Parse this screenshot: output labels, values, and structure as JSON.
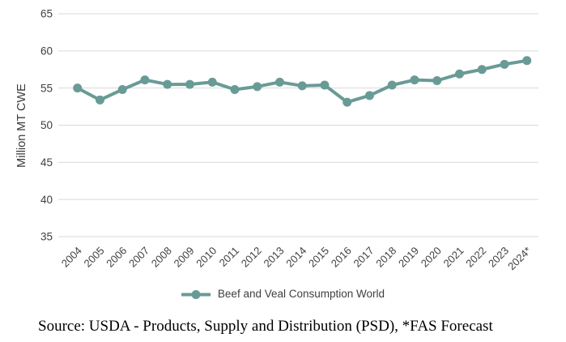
{
  "figure": {
    "source_text": "Source: USDA - Products, Supply and Distribution (PSD), *FAS Forecast"
  },
  "chart_data": {
    "type": "line",
    "title": "",
    "xlabel": "",
    "ylabel": "Million MT CWE",
    "ylim": [
      35,
      65
    ],
    "ytick_step": 5,
    "grid": true,
    "legend_position": "bottom-center",
    "categories": [
      "2004",
      "2005",
      "2006",
      "2007",
      "2008",
      "2009",
      "2010",
      "2011",
      "2012",
      "2013",
      "2014",
      "2015",
      "2016",
      "2017",
      "2018",
      "2019",
      "2020",
      "2021",
      "2022",
      "2023",
      "2024*"
    ],
    "series": [
      {
        "name": "Beef and Veal Consumption World",
        "color": "#699b96",
        "marker": "circle",
        "values": [
          55.0,
          53.4,
          54.8,
          56.1,
          55.5,
          55.5,
          55.8,
          54.8,
          55.2,
          55.8,
          55.3,
          55.4,
          53.1,
          54.0,
          55.4,
          56.1,
          56.0,
          56.9,
          57.5,
          58.2,
          58.7
        ]
      }
    ],
    "colors": {
      "grid": "#d9d9d9",
      "tick_label": "#404040",
      "axis_title": "#3a3a3a"
    }
  }
}
